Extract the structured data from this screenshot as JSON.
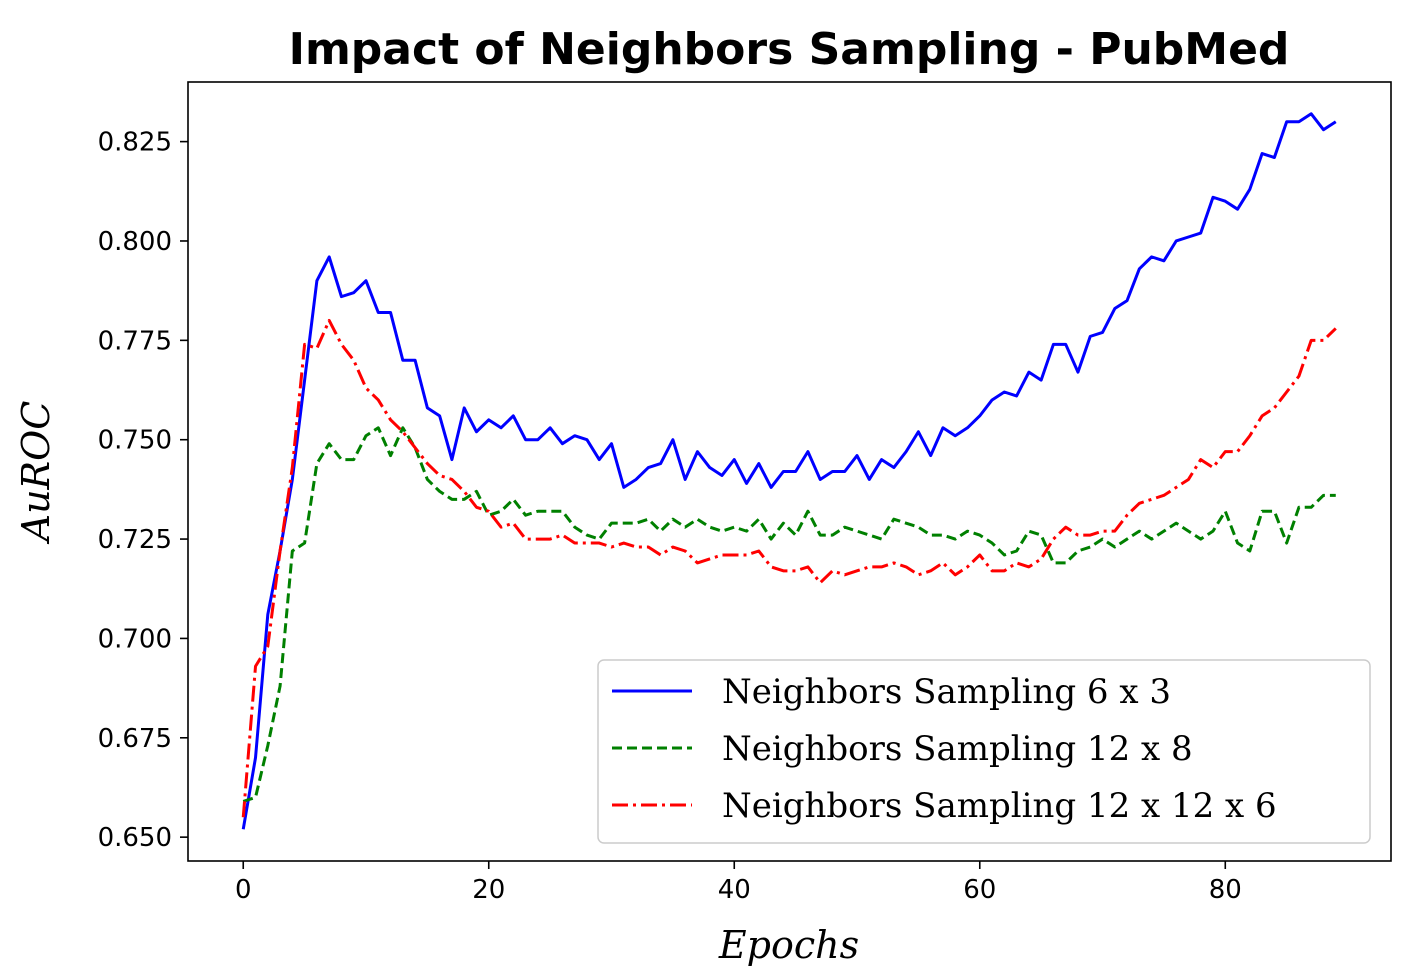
{
  "chart_data": {
    "type": "line",
    "title": "Impact of Neighbors Sampling - PubMed",
    "xlabel": "Epochs",
    "ylabel": "AuROC",
    "xlim": [
      -4.5,
      93.5
    ],
    "ylim": [
      0.644,
      0.84
    ],
    "xticks": [
      0,
      20,
      40,
      60,
      80
    ],
    "xtick_labels": [
      "0",
      "20",
      "40",
      "60",
      "80"
    ],
    "yticks": [
      0.65,
      0.675,
      0.7,
      0.725,
      0.75,
      0.775,
      0.8,
      0.825
    ],
    "ytick_labels": [
      "0.650",
      "0.675",
      "0.700",
      "0.725",
      "0.750",
      "0.775",
      "0.800",
      "0.825"
    ],
    "legend_position": "lower-right",
    "series": [
      {
        "name": "Neighbors Sampling 6 x 3",
        "color": "#0000ff",
        "style": "solid",
        "x_start": 0,
        "values": [
          0.652,
          0.67,
          0.706,
          0.722,
          0.74,
          0.765,
          0.79,
          0.796,
          0.786,
          0.787,
          0.79,
          0.782,
          0.782,
          0.77,
          0.77,
          0.758,
          0.756,
          0.745,
          0.758,
          0.752,
          0.755,
          0.753,
          0.756,
          0.75,
          0.75,
          0.753,
          0.749,
          0.751,
          0.75,
          0.745,
          0.749,
          0.738,
          0.74,
          0.743,
          0.744,
          0.75,
          0.74,
          0.747,
          0.743,
          0.741,
          0.745,
          0.739,
          0.744,
          0.738,
          0.742,
          0.742,
          0.747,
          0.74,
          0.742,
          0.742,
          0.746,
          0.74,
          0.745,
          0.743,
          0.747,
          0.752,
          0.746,
          0.753,
          0.751,
          0.753,
          0.756,
          0.76,
          0.762,
          0.761,
          0.767,
          0.765,
          0.774,
          0.774,
          0.767,
          0.776,
          0.777,
          0.783,
          0.785,
          0.793,
          0.796,
          0.795,
          0.8,
          0.801,
          0.802,
          0.811,
          0.81,
          0.808,
          0.813,
          0.822,
          0.821,
          0.83,
          0.83,
          0.832,
          0.828,
          0.83
        ]
      },
      {
        "name": "Neighbors Sampling 12 x 8",
        "color": "#008000",
        "style": "dashed",
        "x_start": 0,
        "values": [
          0.659,
          0.66,
          0.673,
          0.688,
          0.722,
          0.724,
          0.744,
          0.749,
          0.745,
          0.745,
          0.751,
          0.753,
          0.746,
          0.753,
          0.748,
          0.74,
          0.737,
          0.735,
          0.735,
          0.737,
          0.731,
          0.732,
          0.735,
          0.731,
          0.732,
          0.732,
          0.732,
          0.728,
          0.726,
          0.725,
          0.729,
          0.729,
          0.729,
          0.73,
          0.727,
          0.73,
          0.728,
          0.73,
          0.728,
          0.727,
          0.728,
          0.727,
          0.73,
          0.725,
          0.729,
          0.726,
          0.732,
          0.726,
          0.726,
          0.728,
          0.727,
          0.726,
          0.725,
          0.73,
          0.729,
          0.728,
          0.726,
          0.726,
          0.725,
          0.727,
          0.726,
          0.724,
          0.721,
          0.722,
          0.727,
          0.726,
          0.719,
          0.719,
          0.722,
          0.723,
          0.725,
          0.723,
          0.725,
          0.727,
          0.725,
          0.727,
          0.729,
          0.727,
          0.725,
          0.727,
          0.732,
          0.724,
          0.722,
          0.732,
          0.732,
          0.724,
          0.733,
          0.733,
          0.736,
          0.736
        ]
      },
      {
        "name": "Neighbors Sampling 12 x 12 x 6",
        "color": "#ff0000",
        "style": "dashdot",
        "x_start": 0,
        "values": [
          0.655,
          0.693,
          0.698,
          0.722,
          0.743,
          0.774,
          0.773,
          0.78,
          0.774,
          0.77,
          0.763,
          0.76,
          0.755,
          0.752,
          0.748,
          0.744,
          0.741,
          0.74,
          0.737,
          0.733,
          0.732,
          0.728,
          0.729,
          0.725,
          0.725,
          0.725,
          0.726,
          0.724,
          0.724,
          0.724,
          0.723,
          0.724,
          0.723,
          0.723,
          0.721,
          0.723,
          0.722,
          0.719,
          0.72,
          0.721,
          0.721,
          0.721,
          0.722,
          0.718,
          0.717,
          0.717,
          0.718,
          0.714,
          0.717,
          0.716,
          0.717,
          0.718,
          0.718,
          0.719,
          0.718,
          0.716,
          0.717,
          0.719,
          0.716,
          0.718,
          0.721,
          0.717,
          0.717,
          0.719,
          0.718,
          0.72,
          0.725,
          0.728,
          0.726,
          0.726,
          0.727,
          0.727,
          0.731,
          0.734,
          0.735,
          0.736,
          0.738,
          0.74,
          0.745,
          0.743,
          0.747,
          0.747,
          0.751,
          0.756,
          0.758,
          0.762,
          0.766,
          0.775,
          0.775,
          0.778
        ]
      }
    ]
  }
}
